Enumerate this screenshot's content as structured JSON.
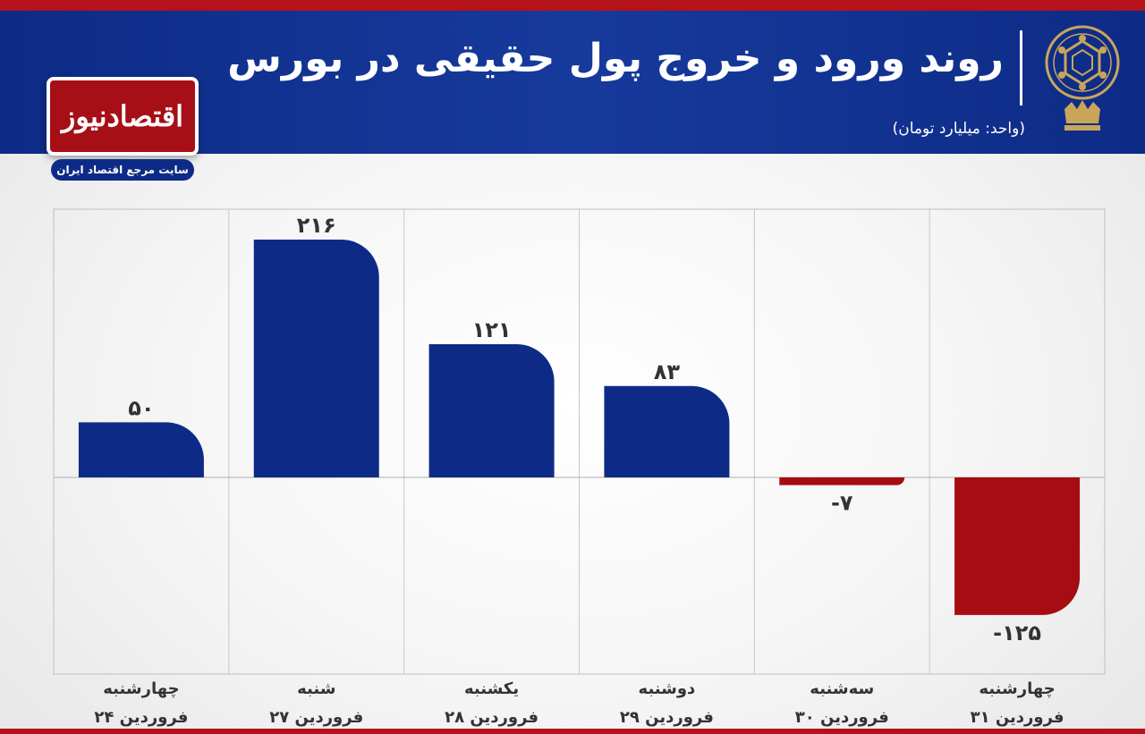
{
  "header": {
    "title": "روند ورود و خروج پول حقیقی در بورس",
    "unit": "(واحد: میلیارد تومان)"
  },
  "brand": {
    "name": "اقتصادنیوز",
    "tagline": "سایت مرجع اقتصاد ایران"
  },
  "colors": {
    "header_blue": "#0d2b86",
    "positive_bar": "#0d2b86",
    "negative_bar": "#a50d12",
    "accent_red": "#b5121b",
    "emblem_gold": "#c9a55a"
  },
  "chart_data": {
    "type": "bar",
    "title": "روند ورود و خروج پول حقیقی در بورس",
    "ylabel": "(واحد: میلیارد تومان)",
    "ylim": [
      -140,
      240
    ],
    "grid": true,
    "categories": [
      {
        "day": "چهارشنبه",
        "date": "۲۴ فروردین"
      },
      {
        "day": "شنبه",
        "date": "۲۷ فروردین"
      },
      {
        "day": "یکشنبه",
        "date": "۲۸ فروردین"
      },
      {
        "day": "دوشنبه",
        "date": "۲۹ فروردین"
      },
      {
        "day": "سه‌شنبه",
        "date": "۳۰ فروردین"
      },
      {
        "day": "چهارشنبه",
        "date": "۳۱ فروردین"
      }
    ],
    "values": [
      50,
      216,
      121,
      83,
      -7,
      -125
    ],
    "value_labels": [
      "۵۰",
      "۲۱۶",
      "۱۲۱",
      "۸۳",
      "-۷",
      "-۱۲۵"
    ]
  }
}
